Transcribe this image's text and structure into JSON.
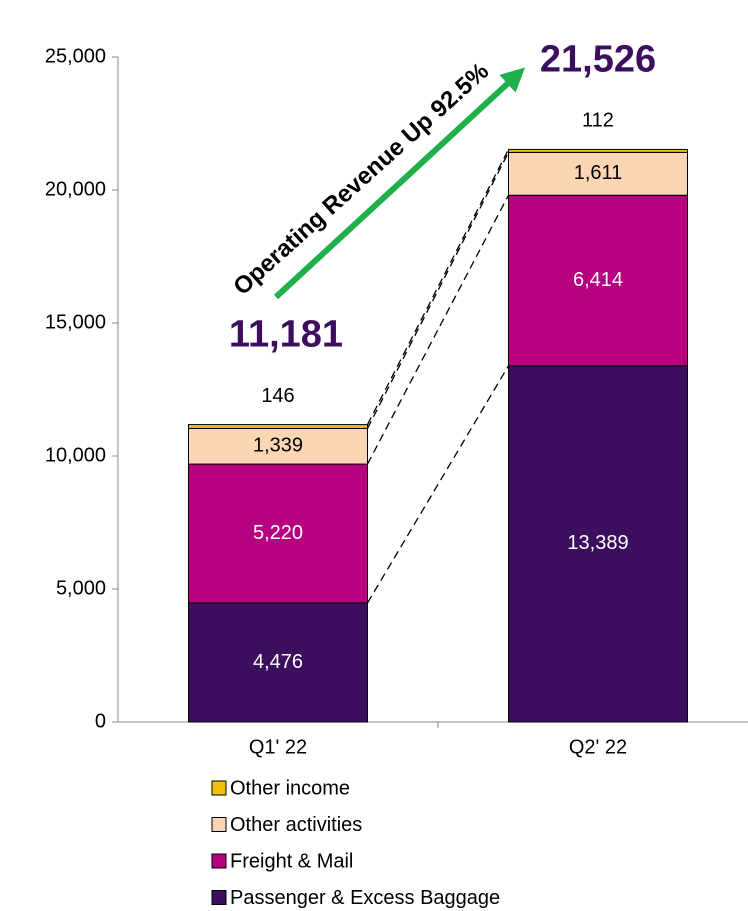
{
  "chart_data": {
    "type": "stacked_bar",
    "categories": [
      "Q1' 22",
      "Q2' 22"
    ],
    "series": [
      {
        "name": "Passenger & Excess Baggage",
        "color": "#3b0f5e",
        "values": [
          4476,
          13389
        ],
        "value_labels": [
          "4,476",
          "13,389"
        ]
      },
      {
        "name": "Freight & Mail",
        "color": "#b5007f",
        "values": [
          5220,
          6414
        ],
        "value_labels": [
          "5,220",
          "6,414"
        ]
      },
      {
        "name": "Other activities",
        "color": "#fcd5b4",
        "values": [
          1339,
          1611
        ],
        "value_labels": [
          "1,339",
          "1,611"
        ]
      },
      {
        "name": "Other income",
        "color": "#f0c010",
        "values": [
          146,
          112
        ],
        "value_labels": [
          "146",
          "112"
        ]
      }
    ],
    "totals": {
      "values": [
        11181,
        21526
      ],
      "value_labels": [
        "11,181",
        "21,526"
      ],
      "color": "#3b0f5e"
    },
    "annotation": {
      "text": "Operating Revenue Up 92.5%",
      "color": "#1fb04b"
    },
    "ylim": [
      0,
      25000
    ],
    "yticks": [
      0,
      {
        "value": 5000,
        "label": "5,000"
      },
      {
        "value": 10000,
        "label": "10,000"
      },
      {
        "value": 15000,
        "label": "15,000"
      },
      {
        "value": 20000,
        "label": "20,000"
      },
      {
        "value": 25000,
        "label": "25,000"
      }
    ],
    "legend": "bottom"
  }
}
